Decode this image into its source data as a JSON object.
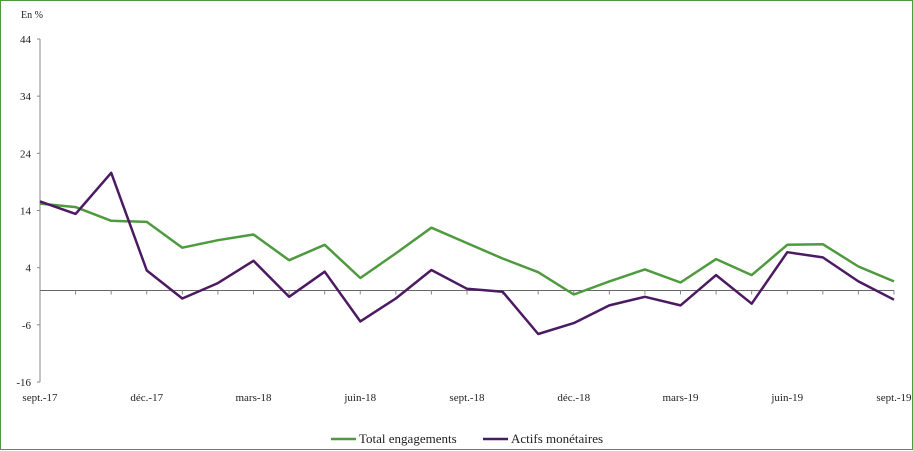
{
  "chart_data": {
    "type": "line",
    "unit_label": "En %",
    "x": [
      "sept.-17",
      "oct.-17",
      "nov.-17",
      "déc.-17",
      "janv.-18",
      "févr.-18",
      "mars-18",
      "avr.-18",
      "mai-18",
      "juin-18",
      "juil.-18",
      "août-18",
      "sept.-18",
      "oct.-18",
      "nov.-18",
      "déc.-18",
      "janv.-19",
      "févr.-19",
      "mars-19",
      "avr.-19",
      "mai-19",
      "juin-19",
      "juil.-19",
      "août-19",
      "sept.-19"
    ],
    "x_tick_labels": [
      "sept.-17",
      "déc.-17",
      "mars-18",
      "juin-18",
      "sept.-18",
      "déc.-18",
      "mars-19",
      "juin-19",
      "sept.-19"
    ],
    "x_tick_indices": [
      0,
      3,
      6,
      9,
      12,
      15,
      18,
      21,
      24
    ],
    "y_ticks": [
      -16,
      -6,
      4,
      14,
      24,
      34,
      44
    ],
    "ylim": [
      -16,
      44
    ],
    "series": [
      {
        "name": "Total engagements",
        "color": "#4e9a3e",
        "values": [
          15.2,
          14.6,
          12.2,
          12.0,
          7.5,
          8.8,
          9.8,
          5.3,
          8.0,
          2.2,
          6.5,
          11.0,
          8.3,
          5.6,
          3.2,
          -0.7,
          1.6,
          3.7,
          1.4,
          5.5,
          2.7,
          8.0,
          8.1,
          4.2,
          1.6
        ]
      },
      {
        "name": "Actifs monétaires",
        "color": "#4b1a63",
        "values": [
          15.6,
          13.4,
          20.6,
          3.5,
          -1.4,
          1.3,
          5.2,
          -1.1,
          3.3,
          -5.4,
          -1.4,
          3.6,
          0.3,
          -0.2,
          -7.6,
          -5.7,
          -2.6,
          -1.1,
          -2.6,
          2.7,
          -2.3,
          6.7,
          5.8,
          1.6,
          -1.6
        ]
      }
    ],
    "legend": "bottom-center",
    "grid": false
  }
}
